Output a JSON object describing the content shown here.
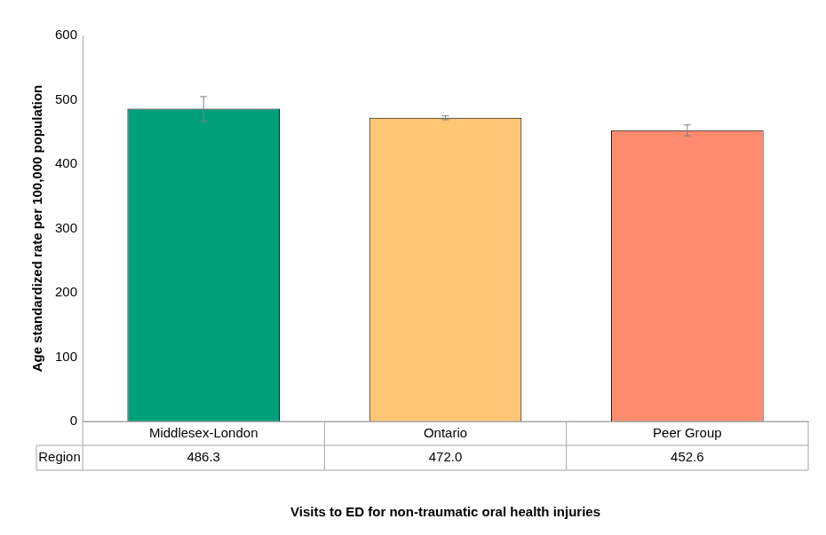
{
  "chart_data": {
    "type": "bar",
    "y_label": "Age standardized rate per 100,000 population",
    "x_label": "Visits to ED for non-traumatic oral health injuries",
    "categories": [
      "Middlesex-London",
      "Ontario",
      "Peer Group"
    ],
    "series": [
      {
        "name": "Region",
        "values": [
          486.3,
          472.0,
          452.6
        ],
        "value_labels": [
          "486.3",
          "472.0",
          "452.6"
        ],
        "error_low": [
          467,
          469,
          444
        ],
        "error_high": [
          505,
          475,
          461
        ]
      }
    ],
    "colors": [
      "#00a07a",
      "#fdc776",
      "#fe8b6e"
    ],
    "ylim": [
      0,
      600
    ],
    "yticks": [
      0,
      100,
      200,
      300,
      400,
      500,
      600
    ],
    "grid": false,
    "data_labels": true
  }
}
